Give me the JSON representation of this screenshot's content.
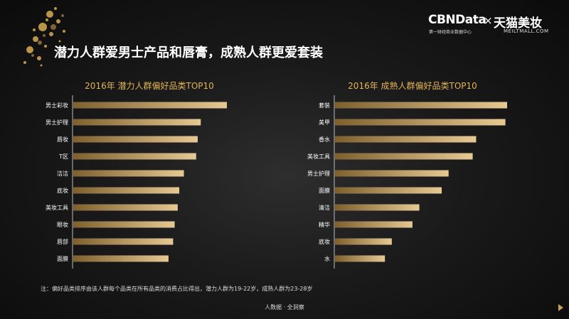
{
  "header": {
    "logo_brand": "CBNData",
    "logo_x": "×",
    "logo_partner": "天猫美妆",
    "logo_sub_left": "第一财经商业数据中心",
    "logo_sub_right": "MEILTMALL.COM",
    "headline": "潜力人群爱男士产品和唇膏，成熟人群更爱套装"
  },
  "footer": {
    "footnote": "注：偏好品类排序由该人群每个品类在所有品类的消费占比得出，潜力人群为19-22岁，成熟人群为23-28岁",
    "source": "人数据 · 全洞察"
  },
  "colors": {
    "accent": "#e3b455",
    "bar_start": "#8a6a35",
    "bar_end": "#e8cb95"
  },
  "chart_data": [
    {
      "type": "bar",
      "orientation": "horizontal",
      "title": "2016年 潜力人群偏好品类TOP10",
      "categories": [
        "男士彩妆",
        "男士护理",
        "唇妆",
        "T区",
        "洁洁",
        "底妆",
        "美妆工具",
        "眼妆",
        "唇部",
        "面膜"
      ],
      "values": [
        100,
        83,
        81,
        80,
        72,
        69,
        68,
        66,
        65,
        62
      ],
      "xlim": [
        0,
        100
      ]
    },
    {
      "type": "bar",
      "orientation": "horizontal",
      "title": "2016年 成熟人群偏好品类TOP10",
      "categories": [
        "套装",
        "美甲",
        "香水",
        "美妆工具",
        "男士护理",
        "面膜",
        "清洁",
        "精华",
        "底妆",
        "水"
      ],
      "values": [
        100,
        99,
        82,
        80,
        66,
        62,
        49,
        45,
        33,
        29
      ],
      "xlim": [
        0,
        100
      ]
    }
  ]
}
